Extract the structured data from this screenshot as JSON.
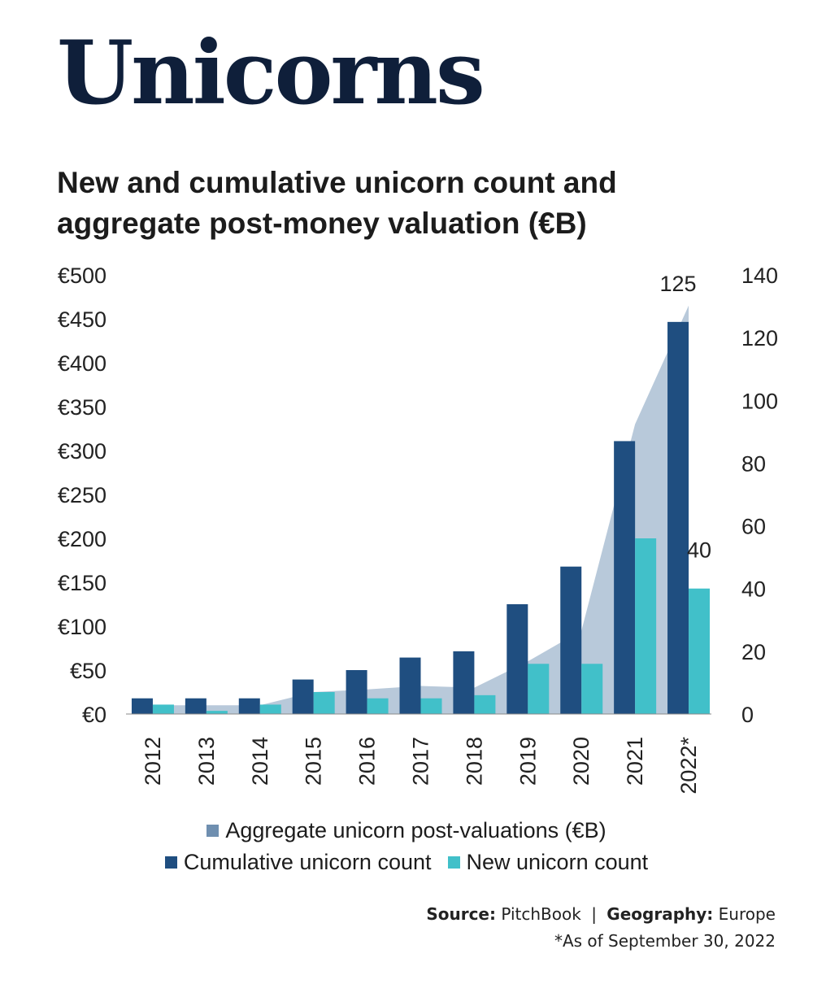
{
  "title": "Unicorns",
  "subtitle": "New and cumulative unicorn count and aggregate post-money valuation (€B)",
  "chart_data": {
    "type": "bar",
    "categories": [
      "2012",
      "2013",
      "2014",
      "2015",
      "2016",
      "2017",
      "2018",
      "2019",
      "2020",
      "2021",
      "2022*"
    ],
    "series": [
      {
        "name": "Aggregate unicorn post-valuations (€B)",
        "kind": "area",
        "axis": "left",
        "color": "#b8c9da",
        "values": [
          10,
          10,
          10,
          25,
          28,
          32,
          30,
          60,
          95,
          330,
          465
        ]
      },
      {
        "name": "Cumulative unicorn count",
        "kind": "bar",
        "axis": "right",
        "color": "#1f4e80",
        "values": [
          5,
          5,
          5,
          11,
          14,
          18,
          20,
          35,
          47,
          87,
          125
        ]
      },
      {
        "name": "New unicorn count",
        "kind": "bar",
        "axis": "right",
        "color": "#41c0c9",
        "values": [
          3,
          1,
          3,
          7,
          5,
          5,
          6,
          16,
          16,
          56,
          40
        ]
      }
    ],
    "left_axis": {
      "ylim": [
        0,
        500
      ],
      "ticks": [
        "€0",
        "€50",
        "€100",
        "€150",
        "€200",
        "€250",
        "€300",
        "€350",
        "€400",
        "€450",
        "€500"
      ]
    },
    "right_axis": {
      "ylim": [
        0,
        140
      ],
      "ticks": [
        "0",
        "20",
        "40",
        "60",
        "80",
        "100",
        "120",
        "140"
      ]
    },
    "data_labels": [
      {
        "category": "2022*",
        "series": "Cumulative unicorn count",
        "text": "125"
      },
      {
        "category": "2022*",
        "series": "New unicorn count",
        "text": "40"
      }
    ],
    "grid": false,
    "legend_position": "bottom"
  },
  "legend": {
    "area_label": "Aggregate unicorn post-valuations (€B)",
    "cumulative_label": "Cumulative unicorn count",
    "new_label": "New unicorn count",
    "area_swatch_color": "#6f8fb0"
  },
  "footer": {
    "source_label": "Source:",
    "source_value": "PitchBook",
    "separator": "|",
    "geography_label": "Geography:",
    "geography_value": "Europe",
    "note": "*As of September 30, 2022"
  }
}
